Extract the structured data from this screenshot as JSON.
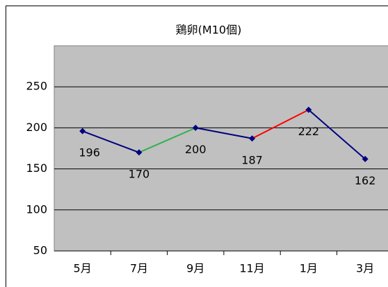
{
  "chart_data": {
    "type": "line",
    "title": "鶏卵(M10個)",
    "categories": [
      "5月",
      "7月",
      "9月",
      "11月",
      "1月",
      "3月"
    ],
    "series": [
      {
        "name": "鶏卵",
        "color": "#000080",
        "values": [
          196,
          170,
          200,
          187,
          222,
          162
        ],
        "segment_colors": [
          "#000080",
          "#33b050",
          "#000080",
          "#ff0000",
          "#000080"
        ]
      }
    ],
    "ylim": [
      50,
      300
    ],
    "yticks": [
      50,
      100,
      150,
      200,
      250
    ],
    "grid": true
  }
}
